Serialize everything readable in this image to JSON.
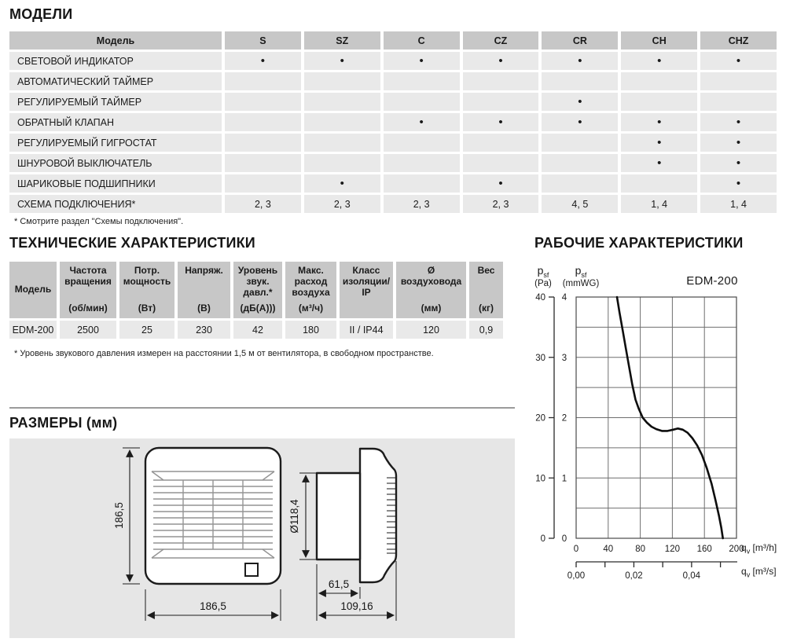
{
  "sections": {
    "models": {
      "title": "МОДЕЛИ",
      "footnote": "* Смотрите раздел \"Схемы подключения\"."
    },
    "tech": {
      "title": "ТЕХНИЧЕСКИЕ ХАРАКТЕРИСТИКИ",
      "footnote": "* Уровень звукового давления измерен на расстоянии 1,5 м от вентилятора, в свободном пространстве."
    },
    "performance": {
      "title": "РАБОЧИЕ ХАРАКТЕРИСТИКИ"
    },
    "dimensions": {
      "title": "РАЗМЕРЫ (мм)"
    }
  },
  "models_table": {
    "header": [
      "Модель",
      "S",
      "SZ",
      "C",
      "CZ",
      "CR",
      "CH",
      "CHZ"
    ],
    "rows": [
      {
        "label": "СВЕТОВОЙ ИНДИКАТОР",
        "values": [
          "•",
          "•",
          "•",
          "•",
          "•",
          "•",
          "•"
        ]
      },
      {
        "label": "АВТОМАТИЧЕСКИЙ ТАЙМЕР",
        "values": [
          "",
          "",
          "",
          "",
          "",
          "",
          ""
        ]
      },
      {
        "label": "РЕГУЛИРУЕМЫЙ ТАЙМЕР",
        "values": [
          "",
          "",
          "",
          "",
          "•",
          "",
          ""
        ]
      },
      {
        "label": "ОБРАТНЫЙ КЛАПАН",
        "values": [
          "",
          "",
          "•",
          "•",
          "•",
          "•",
          "•"
        ]
      },
      {
        "label": "РЕГУЛИРУЕМЫЙ ГИГРОСТАТ",
        "values": [
          "",
          "",
          "",
          "",
          "",
          "•",
          "•"
        ]
      },
      {
        "label": "ШНУРОВОЙ ВЫКЛЮЧАТЕЛЬ",
        "values": [
          "",
          "",
          "",
          "",
          "",
          "•",
          "•"
        ]
      },
      {
        "label": "ШАРИКОВЫЕ ПОДШИПНИКИ",
        "values": [
          "",
          "•",
          "",
          "•",
          "",
          "",
          "•"
        ]
      },
      {
        "label": "СХЕМА ПОДКЛЮЧЕНИЯ*",
        "values": [
          "2, 3",
          "2, 3",
          "2, 3",
          "2, 3",
          "4, 5",
          "1, 4",
          "1, 4"
        ]
      }
    ]
  },
  "tech_table": {
    "columns": [
      {
        "title": "Модель",
        "unit": ""
      },
      {
        "title": "Частота вращения",
        "unit": "(об/мин)"
      },
      {
        "title": "Потр. мощность",
        "unit": "(Вт)"
      },
      {
        "title": "Напряж.",
        "unit": "(В)"
      },
      {
        "title": "Уровень звук. давл.*",
        "unit": "(дБ(А)))"
      },
      {
        "title": "Макс. расход воздуха",
        "unit": "(м³/ч)"
      },
      {
        "title": "Класс изоляции/ IP",
        "unit": ""
      },
      {
        "title": "Ø воздуховода",
        "unit": "(мм)"
      },
      {
        "title": "Вес",
        "unit": "(кг)"
      }
    ],
    "row": [
      "EDM-200",
      "2500",
      "25",
      "230",
      "42",
      "180",
      "II / IP44",
      "120",
      "0,9"
    ]
  },
  "chart_data": {
    "type": "line",
    "title": "EDM-200",
    "grid": {
      "on": true,
      "x_step_m3h": 40,
      "y_step_mmwg": 0.5
    },
    "x_axis": {
      "label_symbol": "q",
      "label_sub": "v",
      "label_unit": "[m³/h]",
      "range": [
        0,
        200
      ],
      "ticks": [
        0,
        40,
        80,
        120,
        160,
        200
      ]
    },
    "x_axis_secondary": {
      "label_symbol": "q",
      "label_sub": "v",
      "label_unit": "[m³/s]",
      "tick_labels": [
        "0,00",
        "0,02",
        "0,04"
      ],
      "tick_values_m3h": [
        0,
        72,
        144
      ],
      "minor_tick_step_m3h": 36
    },
    "y_axis_pa": {
      "label_symbol": "p",
      "label_sub": "sf",
      "label_unit": "(Pa)",
      "range": [
        0,
        40
      ],
      "ticks": [
        0,
        10,
        20,
        30,
        40
      ]
    },
    "y_axis_mmwg": {
      "label_symbol": "p",
      "label_sub": "sf",
      "label_unit": "(mmWG)",
      "range": [
        0,
        4
      ],
      "ticks": [
        0,
        1,
        2,
        3,
        4
      ]
    },
    "series": [
      {
        "name": "EDM-200 fan curve",
        "points_qv_m3h_vs_psf_mmwg": [
          [
            51,
            4.0
          ],
          [
            54,
            3.75
          ],
          [
            58,
            3.45
          ],
          [
            62,
            3.15
          ],
          [
            66,
            2.85
          ],
          [
            70,
            2.55
          ],
          [
            74,
            2.3
          ],
          [
            78,
            2.15
          ],
          [
            83,
            2.0
          ],
          [
            88,
            1.92
          ],
          [
            94,
            1.85
          ],
          [
            100,
            1.81
          ],
          [
            107,
            1.78
          ],
          [
            114,
            1.78
          ],
          [
            121,
            1.8
          ],
          [
            127,
            1.82
          ],
          [
            133,
            1.8
          ],
          [
            139,
            1.75
          ],
          [
            145,
            1.66
          ],
          [
            151,
            1.54
          ],
          [
            157,
            1.38
          ],
          [
            163,
            1.16
          ],
          [
            169,
            0.9
          ],
          [
            174,
            0.62
          ],
          [
            178,
            0.38
          ],
          [
            181,
            0.18
          ],
          [
            183,
            0.0
          ]
        ]
      }
    ]
  },
  "dimensions_drawing": {
    "front_view": {
      "height": "186,5",
      "width": "186,5"
    },
    "side_view": {
      "diameter": "Ø118,4",
      "duct_length": "61,5",
      "total_depth": "109,16"
    }
  },
  "colors": {
    "table_header_bg": "#c7c7c7",
    "table_row_bg": "#e9e9e9",
    "panel_bg": "#e6e6e6",
    "text": "#1a1a1a",
    "curve": "#0e0e0e"
  }
}
